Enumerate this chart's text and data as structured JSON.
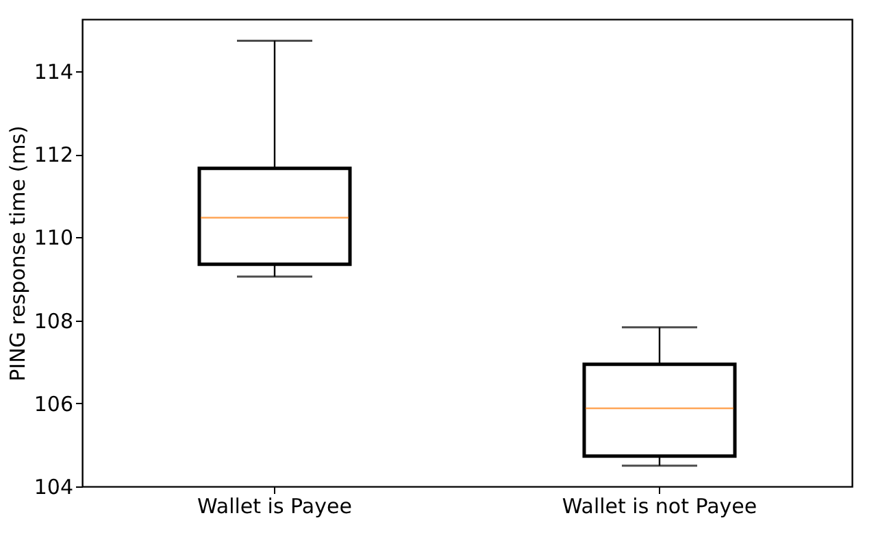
{
  "chart_data": {
    "type": "box",
    "ylabel": "PING response time (ms)",
    "categories": [
      "Wallet is Payee",
      "Wallet is not Payee"
    ],
    "boxes": [
      {
        "low": 109.05,
        "q1": 109.35,
        "median": 110.47,
        "q3": 111.66,
        "high": 114.73
      },
      {
        "low": 104.5,
        "q1": 104.73,
        "median": 105.88,
        "q3": 106.94,
        "high": 107.83
      }
    ],
    "ylim": [
      104,
      115.25
    ],
    "yticks": [
      104,
      106,
      108,
      110,
      112,
      114
    ],
    "grid": false
  }
}
